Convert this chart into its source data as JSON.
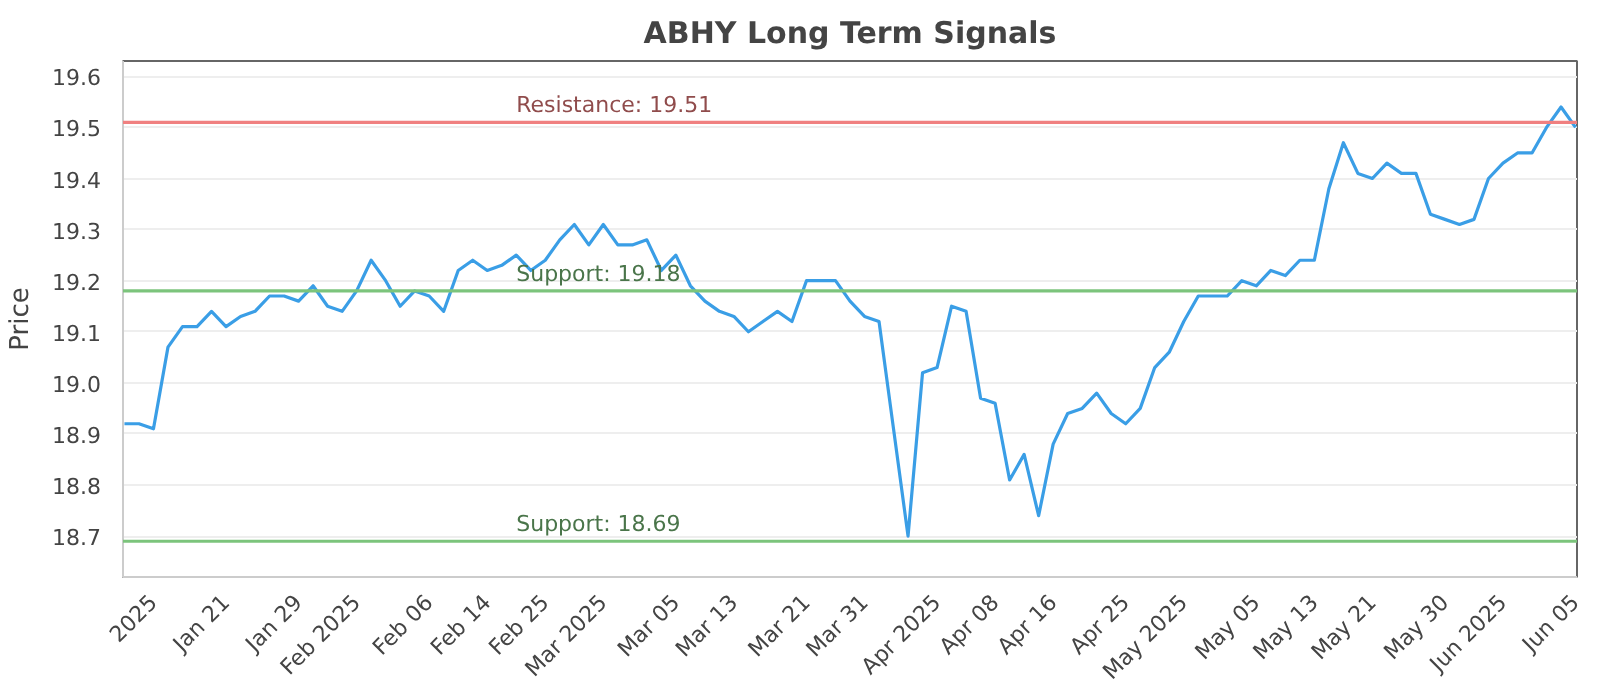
{
  "chart_data": {
    "type": "line",
    "title": "ABHY Long Term Signals",
    "ylabel": "Price",
    "categories": [
      null,
      null,
      "2025",
      null,
      null,
      null,
      null,
      "Jan 21",
      null,
      null,
      null,
      null,
      "Jan 29",
      null,
      null,
      null,
      "Feb 2025",
      null,
      null,
      null,
      null,
      "Feb 06",
      null,
      null,
      null,
      "Feb 14",
      null,
      null,
      null,
      "Feb 25",
      null,
      null,
      null,
      "Mar 2025",
      null,
      null,
      null,
      null,
      "Mar 05",
      null,
      null,
      null,
      "Mar 13",
      null,
      null,
      null,
      null,
      "Mar 21",
      null,
      null,
      null,
      "Mar 31",
      null,
      null,
      null,
      null,
      "Apr 2025",
      null,
      null,
      null,
      "Apr 08",
      null,
      null,
      null,
      "Apr 16",
      null,
      null,
      null,
      null,
      "Apr 25",
      null,
      null,
      null,
      "May 2025",
      null,
      null,
      null,
      null,
      "May 05",
      null,
      null,
      null,
      "May 13",
      null,
      null,
      null,
      "May 21",
      null,
      null,
      null,
      null,
      "May 30",
      null,
      null,
      null,
      "Jun 2025",
      null,
      null,
      null,
      null,
      "Jun 05"
    ],
    "series": [
      {
        "color": "#3a9ee6",
        "values": [
          18.92,
          18.92,
          18.91,
          19.07,
          19.11,
          19.11,
          19.14,
          19.11,
          19.13,
          19.14,
          19.17,
          19.17,
          19.16,
          19.19,
          19.15,
          19.14,
          19.18,
          19.24,
          19.2,
          19.15,
          19.18,
          19.17,
          19.14,
          19.22,
          19.24,
          19.22,
          19.23,
          19.25,
          19.22,
          19.24,
          19.28,
          19.31,
          19.27,
          19.31,
          19.27,
          19.27,
          19.28,
          19.22,
          19.25,
          19.19,
          19.16,
          19.14,
          19.13,
          19.1,
          19.12,
          19.14,
          19.12,
          19.2,
          19.2,
          19.2,
          19.16,
          19.13,
          19.12,
          18.91,
          18.7,
          19.02,
          19.03,
          19.15,
          19.14,
          18.97,
          18.96,
          18.81,
          18.86,
          18.74,
          18.88,
          18.94,
          18.95,
          18.98,
          18.94,
          18.92,
          18.95,
          19.03,
          19.06,
          19.12,
          19.17,
          19.17,
          19.17,
          19.2,
          19.19,
          19.22,
          19.21,
          19.24,
          19.24,
          19.38,
          19.47,
          19.41,
          19.4,
          19.43,
          19.41,
          19.41,
          19.33,
          19.32,
          19.31,
          19.32,
          19.4,
          19.43,
          19.45,
          19.45,
          19.5,
          19.54,
          19.5
        ]
      }
    ],
    "ylim": [
      18.62,
      19.63
    ],
    "yticks": [
      18.7,
      18.8,
      18.9,
      {
        "value": 19.0,
        "label": "19.0"
      },
      19.1,
      19.2,
      19.3,
      19.4,
      19.5,
      19.6
    ],
    "ref_lines": [
      {
        "axis": "y",
        "value": 19.51,
        "label": "Resistance: 19.51",
        "color": "#f08080"
      },
      {
        "axis": "y",
        "value": 19.18,
        "label": "Support: 19.18",
        "color": "#7cc47c"
      },
      {
        "axis": "y",
        "value": 18.69,
        "label": "Support: 18.69",
        "color": "#7cc47c"
      }
    ],
    "grid": "y",
    "marker": "none",
    "line_style": "solid"
  }
}
